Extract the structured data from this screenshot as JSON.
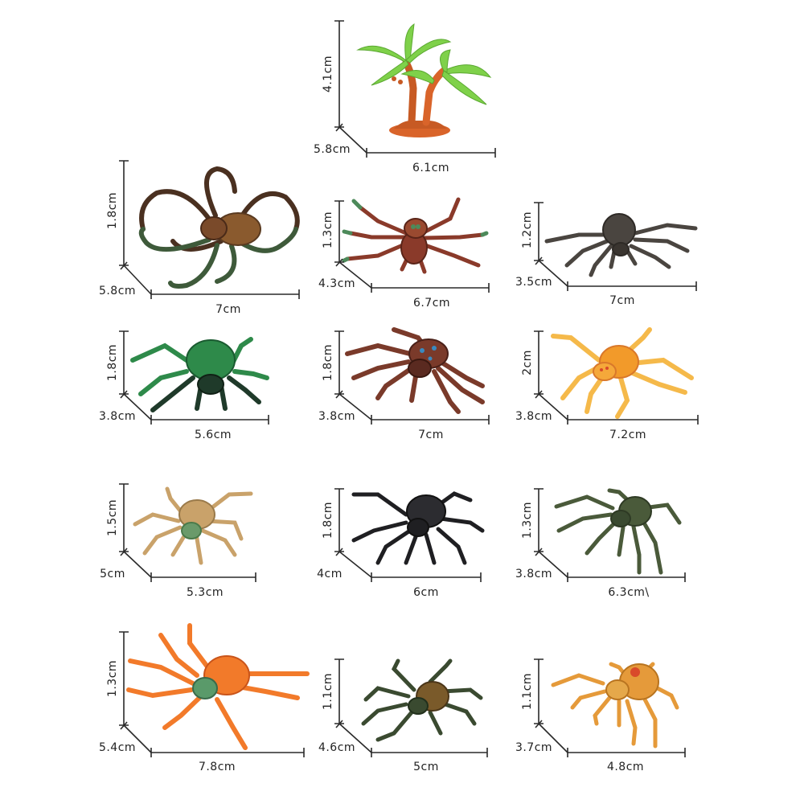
{
  "colors": {
    "background": "#ffffff",
    "dimension_line": "#2a2a2a",
    "label": "#222222"
  },
  "items": [
    {
      "name": "palm-tree",
      "height": "4.1cm",
      "depth": "5.8cm",
      "width": "6.1cm",
      "colors": {
        "primary": "#7fd14a",
        "secondary": "#d9642a"
      }
    },
    {
      "name": "spider-brown-longleg",
      "height": "1.8cm",
      "depth": "5.8cm",
      "width": "7cm",
      "colors": {
        "primary": "#7a4a2a",
        "secondary": "#3e5a3a"
      }
    },
    {
      "name": "spider-red-brown",
      "height": "1.3cm",
      "depth": "4.3cm",
      "width": "6.7cm",
      "colors": {
        "primary": "#8a3a2a",
        "secondary": "#4d8a5a"
      }
    },
    {
      "name": "spider-dark-gray",
      "height": "1.2cm",
      "depth": "3.5cm",
      "width": "7cm",
      "colors": {
        "primary": "#4a4540",
        "secondary": "#5a5550"
      }
    },
    {
      "name": "spider-green",
      "height": "1.8cm",
      "depth": "3.8cm",
      "width": "5.6cm",
      "colors": {
        "primary": "#2e8a4a",
        "secondary": "#1f3a2a"
      }
    },
    {
      "name": "spider-brown-blue-spots",
      "height": "1.8cm",
      "depth": "3.8cm",
      "width": "7cm",
      "colors": {
        "primary": "#7a3a2a",
        "secondary": "#5a2a20"
      }
    },
    {
      "name": "spider-orange-yellow",
      "height": "2cm",
      "depth": "3.8cm",
      "width": "7.2cm",
      "colors": {
        "primary": "#f29a2a",
        "secondary": "#f5b94a"
      }
    },
    {
      "name": "spider-tan",
      "height": "1.5cm",
      "depth": "5cm",
      "width": "5.3cm",
      "colors": {
        "primary": "#c9a26a",
        "secondary": "#6a9a6a"
      }
    },
    {
      "name": "spider-black",
      "height": "1.8cm",
      "depth": "4cm",
      "width": "6cm",
      "colors": {
        "primary": "#1f1f22",
        "secondary": "#2c2c30"
      }
    },
    {
      "name": "spider-olive",
      "height": "1.3cm",
      "depth": "3.8cm",
      "width": "6.3cm\\",
      "colors": {
        "primary": "#4a5a3a",
        "secondary": "#3a4a30"
      }
    },
    {
      "name": "spider-orange",
      "height": "1.3cm",
      "depth": "5.4cm",
      "width": "7.8cm",
      "colors": {
        "primary": "#f27a2a",
        "secondary": "#d95a2a"
      }
    },
    {
      "name": "spider-dark-green",
      "height": "1.1cm",
      "depth": "4.6cm",
      "width": "5cm",
      "colors": {
        "primary": "#3a4a30",
        "secondary": "#7a5a2a"
      }
    },
    {
      "name": "spider-orange-red-spot",
      "height": "1.1cm",
      "depth": "3.7cm",
      "width": "4.8cm",
      "colors": {
        "primary": "#e59a3a",
        "secondary": "#d94a2a"
      }
    }
  ]
}
